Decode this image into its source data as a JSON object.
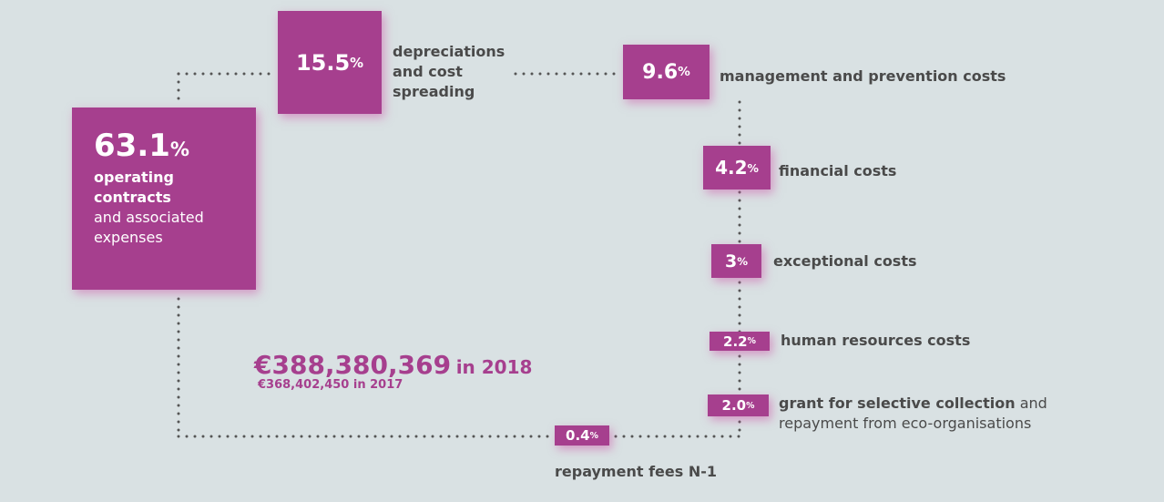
{
  "items": [
    {
      "value": "63.1",
      "unit": "%",
      "label_bold": [
        "operating",
        "contracts"
      ],
      "label": [
        "and associated",
        "expenses"
      ]
    },
    {
      "value": "15.5",
      "unit": "%",
      "label_bold": [
        "depreciations",
        "and cost",
        "spreading"
      ]
    },
    {
      "value": "9.6",
      "unit": "%",
      "label_bold": [
        "management and prevention costs"
      ]
    },
    {
      "value": "4.2",
      "unit": "%",
      "label_bold": [
        "financial costs"
      ]
    },
    {
      "value": "3",
      "unit": "%",
      "label_bold": [
        "exceptional costs"
      ]
    },
    {
      "value": "2.2",
      "unit": "%",
      "label_bold": [
        "human resources costs"
      ]
    },
    {
      "value": "2.0",
      "unit": "%",
      "label_bold": [
        "grant for selective collection"
      ],
      "label": [
        " and",
        "repayment from  eco-organisations"
      ]
    },
    {
      "value": "0.4",
      "unit": "%",
      "label_bold": [
        "repayment fees N-1"
      ]
    }
  ],
  "total": {
    "amount": "€388,380,369",
    "year": "in 2018",
    "previous_amount": "€368,402,450",
    "previous_year": "in 2017"
  }
}
